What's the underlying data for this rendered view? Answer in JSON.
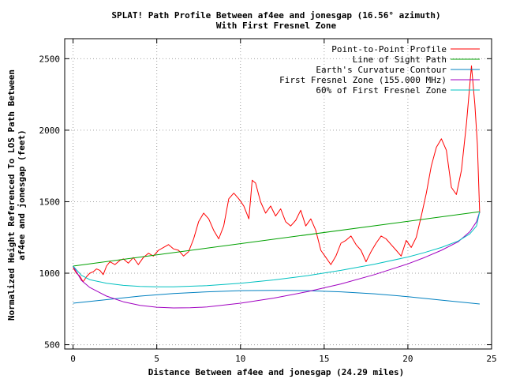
{
  "chart_data": {
    "type": "line",
    "title_line1": "SPLAT! Path Profile Between af4ee and jonesgap (16.56° azimuth)",
    "title_line2": "With First Fresnel Zone",
    "xlabel": "Distance Between af4ee and jonesgap (24.29 miles)",
    "ylabel_line1": "Normalized Height Referenced To LOS Path Between",
    "ylabel_line2": "af4ee and jonesgap (feet)",
    "xlim": [
      -0.5,
      25
    ],
    "ylim": [
      470,
      2640
    ],
    "x_ticks": [
      0,
      5,
      10,
      15,
      20,
      25
    ],
    "y_ticks": [
      500,
      1000,
      1500,
      2000,
      2500
    ],
    "grid": "dotted",
    "legend_position": "top-right",
    "colors": {
      "profile": "#ff0000",
      "los": "#00a000",
      "curvature": "#0080c0",
      "fresnel": "#a000c0",
      "fresnel60": "#00c0c0"
    },
    "series": [
      {
        "name": "Point-to-Point Profile",
        "key": "profile",
        "points": [
          [
            0,
            1040
          ],
          [
            0.2,
            1000
          ],
          [
            0.4,
            980
          ],
          [
            0.6,
            940
          ],
          [
            0.8,
            975
          ],
          [
            1.0,
            1000
          ],
          [
            1.2,
            1010
          ],
          [
            1.4,
            1030
          ],
          [
            1.6,
            1020
          ],
          [
            1.8,
            990
          ],
          [
            2.0,
            1050
          ],
          [
            2.2,
            1080
          ],
          [
            2.5,
            1060
          ],
          [
            2.8,
            1090
          ],
          [
            3.0,
            1100
          ],
          [
            3.3,
            1070
          ],
          [
            3.6,
            1110
          ],
          [
            3.9,
            1060
          ],
          [
            4.2,
            1110
          ],
          [
            4.5,
            1140
          ],
          [
            4.8,
            1120
          ],
          [
            5.1,
            1160
          ],
          [
            5.4,
            1180
          ],
          [
            5.7,
            1200
          ],
          [
            6.0,
            1170
          ],
          [
            6.3,
            1160
          ],
          [
            6.6,
            1120
          ],
          [
            6.9,
            1150
          ],
          [
            7.2,
            1240
          ],
          [
            7.5,
            1360
          ],
          [
            7.8,
            1420
          ],
          [
            8.1,
            1380
          ],
          [
            8.4,
            1300
          ],
          [
            8.7,
            1240
          ],
          [
            9.0,
            1330
          ],
          [
            9.3,
            1520
          ],
          [
            9.6,
            1560
          ],
          [
            9.9,
            1520
          ],
          [
            10.2,
            1470
          ],
          [
            10.5,
            1380
          ],
          [
            10.7,
            1650
          ],
          [
            10.9,
            1630
          ],
          [
            11.2,
            1500
          ],
          [
            11.5,
            1420
          ],
          [
            11.8,
            1470
          ],
          [
            12.1,
            1400
          ],
          [
            12.4,
            1450
          ],
          [
            12.7,
            1360
          ],
          [
            13.0,
            1330
          ],
          [
            13.3,
            1370
          ],
          [
            13.6,
            1440
          ],
          [
            13.9,
            1330
          ],
          [
            14.2,
            1380
          ],
          [
            14.5,
            1300
          ],
          [
            14.8,
            1160
          ],
          [
            15.1,
            1110
          ],
          [
            15.4,
            1060
          ],
          [
            15.7,
            1120
          ],
          [
            16.0,
            1210
          ],
          [
            16.3,
            1230
          ],
          [
            16.6,
            1260
          ],
          [
            16.9,
            1200
          ],
          [
            17.2,
            1160
          ],
          [
            17.5,
            1080
          ],
          [
            17.8,
            1150
          ],
          [
            18.1,
            1210
          ],
          [
            18.4,
            1260
          ],
          [
            18.7,
            1240
          ],
          [
            19.0,
            1200
          ],
          [
            19.3,
            1160
          ],
          [
            19.6,
            1120
          ],
          [
            19.9,
            1230
          ],
          [
            20.2,
            1180
          ],
          [
            20.5,
            1250
          ],
          [
            20.8,
            1400
          ],
          [
            21.1,
            1560
          ],
          [
            21.4,
            1750
          ],
          [
            21.7,
            1880
          ],
          [
            22.0,
            1940
          ],
          [
            22.3,
            1860
          ],
          [
            22.6,
            1600
          ],
          [
            22.9,
            1550
          ],
          [
            23.2,
            1720
          ],
          [
            23.5,
            2050
          ],
          [
            23.8,
            2450
          ],
          [
            24.0,
            2180
          ],
          [
            24.15,
            1900
          ],
          [
            24.29,
            1420
          ]
        ]
      },
      {
        "name": "Line of Sight Path",
        "key": "los",
        "points": [
          [
            0,
            1050
          ],
          [
            24.29,
            1430
          ]
        ]
      },
      {
        "name": "Earth's Curvature Contour",
        "key": "curvature",
        "points": [
          [
            0,
            790
          ],
          [
            2,
            815
          ],
          [
            4,
            840
          ],
          [
            6,
            858
          ],
          [
            8,
            870
          ],
          [
            10,
            878
          ],
          [
            12,
            880
          ],
          [
            14,
            878
          ],
          [
            16,
            870
          ],
          [
            18,
            856
          ],
          [
            20,
            836
          ],
          [
            22,
            812
          ],
          [
            24.29,
            785
          ]
        ]
      },
      {
        "name": "First Fresnel Zone (155.000 MHz)",
        "key": "fresnel",
        "points": [
          [
            0,
            1050
          ],
          [
            0.5,
            950
          ],
          [
            1,
            900
          ],
          [
            2,
            840
          ],
          [
            3,
            800
          ],
          [
            4,
            775
          ],
          [
            5,
            762
          ],
          [
            6,
            757
          ],
          [
            7,
            758
          ],
          [
            8,
            764
          ],
          [
            10,
            790
          ],
          [
            12,
            826
          ],
          [
            14,
            871
          ],
          [
            16,
            925
          ],
          [
            18,
            990
          ],
          [
            20,
            1065
          ],
          [
            21,
            1110
          ],
          [
            22,
            1160
          ],
          [
            23,
            1220
          ],
          [
            23.7,
            1290
          ],
          [
            24.1,
            1360
          ],
          [
            24.29,
            1430
          ]
        ]
      },
      {
        "name": "60% of First Fresnel Zone",
        "key": "fresnel60",
        "points": [
          [
            0,
            1050
          ],
          [
            0.5,
            985
          ],
          [
            1,
            955
          ],
          [
            2,
            930
          ],
          [
            3,
            915
          ],
          [
            4,
            908
          ],
          [
            5,
            905
          ],
          [
            6,
            905
          ],
          [
            8,
            913
          ],
          [
            10,
            930
          ],
          [
            12,
            953
          ],
          [
            14,
            983
          ],
          [
            16,
            1020
          ],
          [
            18,
            1063
          ],
          [
            20,
            1113
          ],
          [
            21,
            1145
          ],
          [
            22,
            1180
          ],
          [
            23,
            1225
          ],
          [
            23.7,
            1275
          ],
          [
            24.1,
            1330
          ],
          [
            24.29,
            1430
          ]
        ]
      }
    ]
  }
}
